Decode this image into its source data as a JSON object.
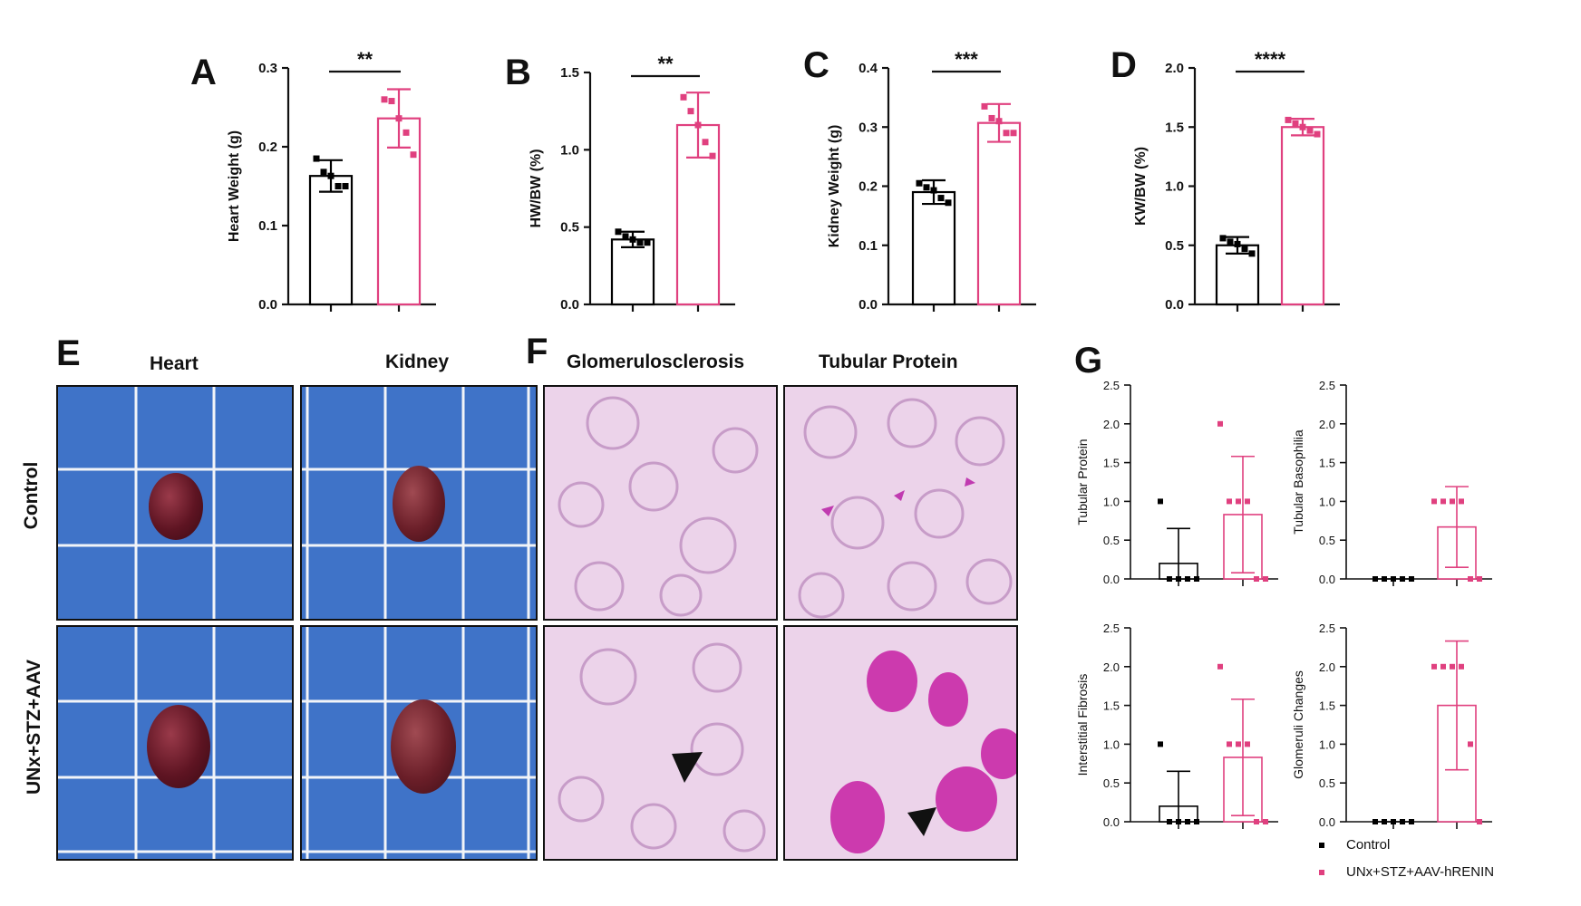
{
  "colors": {
    "control": "#000000",
    "treated": "#e0407f",
    "treated_err_G": "#d9603a"
  },
  "panels": {
    "A": "A",
    "B": "B",
    "C": "C",
    "D": "D",
    "E": "E",
    "F": "F",
    "G": "G"
  },
  "photo_headers": {
    "heart": "Heart",
    "kidney": "Kidney",
    "glomerulosclerosis": "Glomerulosclerosis",
    "tubular_protein": "Tubular Protein"
  },
  "row_labels": {
    "control": "Control",
    "treated": "UNx+STZ+AAV"
  },
  "legend": {
    "control": "Control",
    "treated": "UNx+STZ+AAV-hRENIN"
  },
  "chart_data": [
    {
      "panel": "A",
      "type": "bar",
      "ylabel": "Heart Weight (g)",
      "ylim": [
        0,
        0.3
      ],
      "ticks": [
        "0.0",
        "0.1",
        "0.2",
        "0.3"
      ],
      "significance": "**",
      "series": [
        {
          "values": [
            0.163
          ],
          "error": 0.02,
          "points": [
            0.185,
            0.168,
            0.163,
            0.15,
            0.15
          ]
        },
        {
          "values": [
            0.236
          ],
          "error": 0.037,
          "points": [
            0.26,
            0.258,
            0.236,
            0.218,
            0.19
          ]
        }
      ]
    },
    {
      "panel": "B",
      "type": "bar",
      "ylabel": "HW/BW (%)",
      "ylim": [
        0,
        1.5
      ],
      "ticks": [
        "0.0",
        "0.5",
        "1.0",
        "1.5"
      ],
      "significance": "**",
      "series": [
        {
          "values": [
            0.42
          ],
          "error": 0.05,
          "points": [
            0.47,
            0.44,
            0.42,
            0.4,
            0.4
          ]
        },
        {
          "values": [
            1.16
          ],
          "error": 0.21,
          "points": [
            1.34,
            1.25,
            1.16,
            1.05,
            0.96
          ]
        }
      ]
    },
    {
      "panel": "C",
      "type": "bar",
      "ylabel": "Kidney Weight (g)",
      "ylim": [
        0,
        0.4
      ],
      "ticks": [
        "0.0",
        "0.1",
        "0.2",
        "0.3",
        "0.4"
      ],
      "significance": "***",
      "series": [
        {
          "values": [
            0.19
          ],
          "error": 0.02,
          "points": [
            0.205,
            0.198,
            0.193,
            0.18,
            0.172
          ]
        },
        {
          "values": [
            0.307
          ],
          "error": 0.032,
          "points": [
            0.335,
            0.315,
            0.31,
            0.29,
            0.29
          ]
        }
      ]
    },
    {
      "panel": "D",
      "type": "bar",
      "ylabel": "KW/BW (%)",
      "ylim": [
        0,
        2.0
      ],
      "ticks": [
        "0.0",
        "0.5",
        "1.0",
        "1.5",
        "2.0"
      ],
      "significance": "****",
      "series": [
        {
          "values": [
            0.5
          ],
          "error": 0.07,
          "points": [
            0.56,
            0.53,
            0.51,
            0.47,
            0.43
          ]
        },
        {
          "values": [
            1.5
          ],
          "error": 0.07,
          "points": [
            1.56,
            1.53,
            1.5,
            1.47,
            1.44
          ]
        }
      ]
    },
    {
      "panel": "G1",
      "type": "bar",
      "ylabel": "Tubular Protein",
      "ylim": [
        0,
        2.5
      ],
      "ticks": [
        "0.0",
        "0.5",
        "1.0",
        "1.5",
        "2.0",
        "2.5"
      ],
      "series": [
        {
          "values": [
            0.2
          ],
          "error": 0.45,
          "points": [
            1,
            0,
            0,
            0,
            0
          ]
        },
        {
          "values": [
            0.83
          ],
          "error": 0.75,
          "points": [
            2,
            1,
            1,
            1,
            0,
            0
          ]
        }
      ]
    },
    {
      "panel": "G2",
      "type": "bar",
      "ylabel": "Tubular Basophilia",
      "ylim": [
        0,
        2.5
      ],
      "ticks": [
        "0.0",
        "0.5",
        "1.0",
        "1.5",
        "2.0",
        "2.5"
      ],
      "series": [
        {
          "values": [
            0.0
          ],
          "error": 0.0,
          "points": [
            0,
            0,
            0,
            0,
            0
          ]
        },
        {
          "values": [
            0.67
          ],
          "error": 0.52,
          "points": [
            1,
            1,
            1,
            1,
            0,
            0
          ]
        }
      ]
    },
    {
      "panel": "G3",
      "type": "bar",
      "ylabel": "Interstitial Fibrosis",
      "ylim": [
        0,
        2.5
      ],
      "ticks": [
        "0.0",
        "0.5",
        "1.0",
        "1.5",
        "2.0",
        "2.5"
      ],
      "series": [
        {
          "values": [
            0.2
          ],
          "error": 0.45,
          "points": [
            1,
            0,
            0,
            0,
            0
          ]
        },
        {
          "values": [
            0.83
          ],
          "error": 0.75,
          "points": [
            2,
            1,
            1,
            1,
            0,
            0
          ]
        }
      ]
    },
    {
      "panel": "G4",
      "type": "bar",
      "ylabel": "Glomeruli Changes",
      "ylim": [
        0,
        2.5
      ],
      "ticks": [
        "0.0",
        "0.5",
        "1.0",
        "1.5",
        "2.0",
        "2.5"
      ],
      "series": [
        {
          "values": [
            0.0
          ],
          "error": 0.0,
          "points": [
            0,
            0,
            0,
            0,
            0
          ]
        },
        {
          "values": [
            1.5
          ],
          "error": 0.83,
          "points": [
            2,
            2,
            2,
            2,
            1,
            0
          ]
        }
      ]
    }
  ]
}
